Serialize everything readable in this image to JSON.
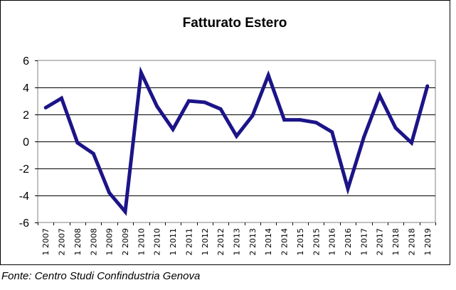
{
  "chart_data": {
    "type": "line",
    "title": "Fatturato Estero",
    "xlabel": "",
    "ylabel": "",
    "categories": [
      "1 2007",
      "2 2007",
      "1 2008",
      "2 2008",
      "1 2009",
      "2 2009",
      "1 2010",
      "2 2010",
      "1 2011",
      "2 2011",
      "1 2012",
      "2 2012",
      "1 2013",
      "2 2013",
      "1 2014",
      "2 2014",
      "1 2015",
      "2 2015",
      "1 2016",
      "2 2016",
      "1 2017",
      "2 2017",
      "1 2018",
      "2 2018",
      "1 2019"
    ],
    "series": [
      {
        "values": [
          2.5,
          3.2,
          -0.1,
          -0.9,
          -3.8,
          -5.2,
          5.1,
          2.6,
          0.9,
          3.0,
          2.9,
          2.4,
          0.4,
          1.9,
          4.9,
          1.6,
          1.6,
          1.4,
          0.7,
          -3.5,
          0.3,
          3.4,
          1.0,
          -0.1,
          4.1
        ]
      }
    ],
    "ylim": [
      -6,
      6
    ],
    "yticks": [
      "6",
      "4",
      "2",
      "0",
      "-2",
      "-4",
      "-6"
    ],
    "ytick_values": [
      6,
      4,
      2,
      0,
      -2,
      -4,
      -6
    ],
    "grid": "horizontal",
    "legend": "none",
    "colors": {
      "line": "#1c1487",
      "grid": "#000000",
      "frame": "#000000"
    }
  },
  "source": "Fonte: Centro Studi Confindustria Genova"
}
